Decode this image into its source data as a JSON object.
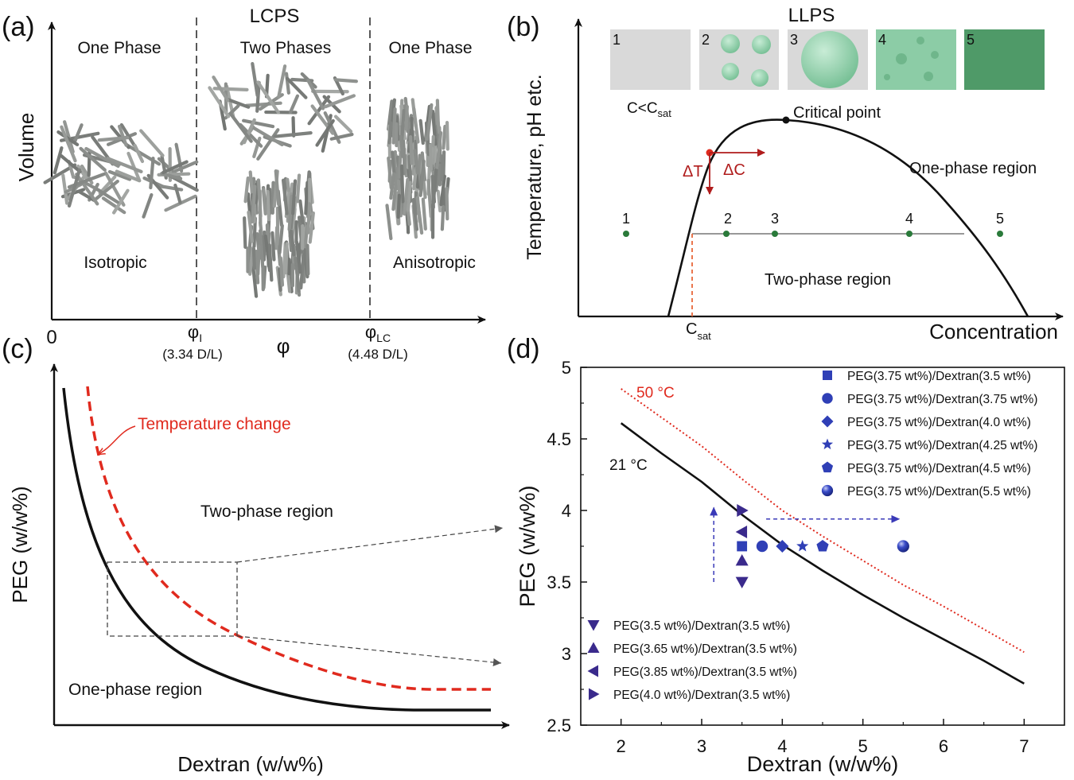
{
  "colors": {
    "ink": "#111111",
    "red_dashed": "#e02a1e",
    "dark_red": "#b01c1c",
    "orange_dashed": "#e8683a",
    "green_dot": "#2a7a3a",
    "blue_marker": "#2f3fb6",
    "purple_marker": "#3a2a8c",
    "rod": "#8a8d8a",
    "grey_box": "#d9d9d9",
    "green_light": "#8ccca6",
    "green_dark": "#4f9a68"
  },
  "panels": {
    "a": {
      "label": "(a)",
      "title": "LCPS",
      "ylabel": "Volume",
      "xlabel": "φ",
      "origin_label": "0",
      "regions": [
        "One Phase",
        "Two Phases",
        "One Phase"
      ],
      "bottom_labels": [
        "Isotropic",
        "Anisotropic"
      ],
      "boundaries": [
        {
          "symbol": "φ",
          "sub": "I",
          "value": "(3.34 D/L)"
        },
        {
          "symbol": "φ",
          "sub": "LC",
          "value": "(4.48 D/L)"
        }
      ]
    },
    "b": {
      "label": "(b)",
      "title": "LLPS",
      "ylabel": "Temperature, pH etc.",
      "xlabel": "Concentration",
      "boxes": [
        "1",
        "2",
        "3",
        "4",
        "5"
      ],
      "csat_cond": "C<C",
      "csat_cond_sub": "sat",
      "critical": "Critical point",
      "one_phase": "One-phase region",
      "two_phase": "Two-phase region",
      "delta_t": "ΔT",
      "delta_c": "ΔC",
      "csat": "C",
      "csat_sub": "sat",
      "points": [
        "1",
        "2",
        "3",
        "4",
        "5"
      ]
    },
    "c": {
      "label": "(c)",
      "ylabel": "PEG (w/w%)",
      "xlabel": "Dextran (w/w%)",
      "temp_change": "Temperature change",
      "two_phase": "Two-phase region",
      "one_phase": "One-phase region"
    },
    "d": {
      "label": "(d)",
      "label_50": "50 °C",
      "label_21": "21 °C"
    }
  },
  "chart_data": {
    "type": "line",
    "xlabel": "Dextran (w/w%)",
    "ylabel": "PEG (w/w%)",
    "xlim": [
      1.5,
      7.5
    ],
    "ylim": [
      2.5,
      5.0
    ],
    "xticks": [
      "2",
      "3",
      "4",
      "5",
      "6",
      "7"
    ],
    "yticks": [
      "2.5",
      "3",
      "3.5",
      "4",
      "4.5",
      "5"
    ],
    "series": [
      {
        "name": "21 °C",
        "style": "solid",
        "color": "#111111",
        "x": [
          2.0,
          2.5,
          3.0,
          3.5,
          4.0,
          4.5,
          5.0,
          5.5,
          6.0,
          6.5,
          7.0
        ],
        "y": [
          4.61,
          4.4,
          4.2,
          3.97,
          3.76,
          3.58,
          3.41,
          3.25,
          3.1,
          2.95,
          2.79
        ]
      },
      {
        "name": "50 °C",
        "style": "dotted",
        "color": "#e02a1e",
        "x": [
          2.0,
          2.5,
          3.0,
          3.5,
          4.0,
          4.5,
          5.0,
          5.5,
          6.0,
          6.5,
          7.0
        ],
        "y": [
          4.85,
          4.65,
          4.45,
          4.22,
          4.0,
          3.82,
          3.65,
          3.48,
          3.33,
          3.17,
          3.01
        ]
      }
    ],
    "points": [
      {
        "name": "PEG(3.75 wt%)/Dextran(3.5 wt%)",
        "marker": "square",
        "x": 3.5,
        "y": 3.75,
        "color": "#2f3fb6"
      },
      {
        "name": "PEG(3.75 wt%)/Dextran(3.75 wt%)",
        "marker": "circle",
        "x": 3.75,
        "y": 3.75,
        "color": "#2f3fb6"
      },
      {
        "name": "PEG(3.75 wt%)/Dextran(4.0 wt%)",
        "marker": "diamond",
        "x": 4.0,
        "y": 3.75,
        "color": "#2f3fb6"
      },
      {
        "name": "PEG(3.75 wt%)/Dextran(4.25 wt%)",
        "marker": "star",
        "x": 4.25,
        "y": 3.75,
        "color": "#2f3fb6"
      },
      {
        "name": "PEG(3.75 wt%)/Dextran(4.5 wt%)",
        "marker": "pentagon",
        "x": 4.5,
        "y": 3.75,
        "color": "#2f3fb6"
      },
      {
        "name": "PEG(3.75 wt%)/Dextran(5.5 wt%)",
        "marker": "sphere",
        "x": 5.5,
        "y": 3.75,
        "color": "#2f3fb6"
      },
      {
        "name": "PEG(3.5 wt%)/Dextran(3.5 wt%)",
        "marker": "tri-down",
        "x": 3.5,
        "y": 3.5,
        "color": "#3a2a8c"
      },
      {
        "name": "PEG(3.65 wt%)/Dextran(3.5 wt%)",
        "marker": "tri-up",
        "x": 3.5,
        "y": 3.65,
        "color": "#3a2a8c"
      },
      {
        "name": "PEG(3.85 wt%)/Dextran(3.5 wt%)",
        "marker": "tri-left",
        "x": 3.5,
        "y": 3.85,
        "color": "#3a2a8c"
      },
      {
        "name": "PEG(4.0 wt%)/Dextran(3.5 wt%)",
        "marker": "tri-right",
        "x": 3.5,
        "y": 4.0,
        "color": "#3a2a8c"
      }
    ],
    "legend_top": [
      0,
      1,
      2,
      3,
      4,
      5
    ],
    "legend_bottom": [
      6,
      7,
      8,
      9
    ],
    "arrows": [
      {
        "from": [
          3.15,
          3.5
        ],
        "to": [
          3.15,
          4.02
        ],
        "style": "dashed"
      },
      {
        "from": [
          3.8,
          3.94
        ],
        "to": [
          5.45,
          3.94
        ],
        "style": "dashed"
      }
    ]
  }
}
